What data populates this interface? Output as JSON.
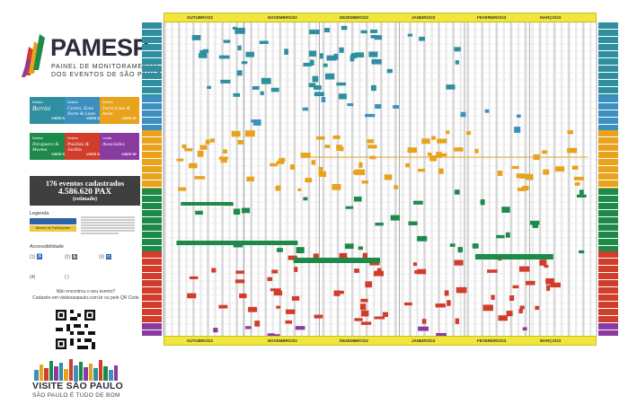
{
  "header": {
    "brand": "PAMESP",
    "tagline_1": "PAINEL DE MONITORAMENTO",
    "tagline_2": "DOS EVENTOS DE SÃO PAULO"
  },
  "destinations": [
    {
      "small": "Destino",
      "name": "Berrini",
      "tag": "VISITE SP",
      "color": "#2f8fa0"
    },
    {
      "small": "Destino",
      "name": "Centro, Zona Norte & Leste",
      "tag": "VISITE SP",
      "color": "#3d8fbf"
    },
    {
      "small": "Destino",
      "name": "Faria Lima & Itaim",
      "tag": "VISITE SP",
      "color": "#e8a21c"
    },
    {
      "small": "Destino",
      "name": "Ibirapuera & Moema",
      "tag": "VISITE SP",
      "color": "#1e8a4a"
    },
    {
      "small": "Destino",
      "name": "Paulista & Jardins",
      "tag": "VISITE SP",
      "color": "#d13c2b"
    },
    {
      "small": "Locais",
      "name": "Associados",
      "tag": "VISITE SP",
      "color": "#8a3ba2"
    }
  ],
  "summary": {
    "line1": "176 eventos cadastrados",
    "line2": "4.586.620 PAX",
    "line3": "(estimado)"
  },
  "legend": {
    "title": "Legenda",
    "item": "Número de Participantes"
  },
  "accessibility": {
    "title": "Accessibilidade",
    "items": [
      "(1)",
      "(2)",
      "(3)",
      "(4)",
      "( )"
    ]
  },
  "cta": {
    "line1": "Não encontrou o seu evento?",
    "line2": "Cadastre em visitesaopaulo.com.br ou pelo QR Code"
  },
  "footer": {
    "brand": "VISITE SÃO PAULO",
    "slogan": "SÃO PAULO É TUDO DE BOM"
  },
  "timeline": {
    "months": [
      "OUTUBRO/22",
      "NOVEMBRO/22",
      "DEZEMBRO/22",
      "JANEIRO/23",
      "FEVEREIRO/23",
      "MARÇO/23"
    ]
  },
  "colors": {
    "yellow_band": "#f0e63c",
    "summary_bg": "#3f3f3f"
  }
}
